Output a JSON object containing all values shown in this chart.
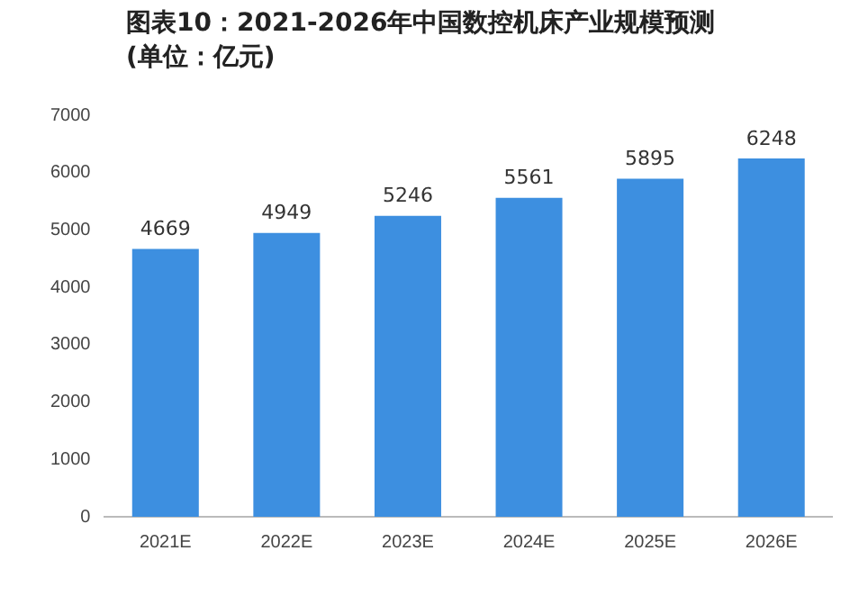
{
  "chart_data": {
    "type": "bar",
    "title": "图表10：2021-2026年中国数控机床产业规模预测(单位：亿元)",
    "categories": [
      "2021E",
      "2022E",
      "2023E",
      "2024E",
      "2025E",
      "2026E"
    ],
    "values": [
      4669,
      4949,
      5246,
      5561,
      5895,
      6248
    ],
    "color": "#3d8fe0",
    "ylim": [
      0,
      7000
    ],
    "yticks": [
      0,
      1000,
      2000,
      3000,
      4000,
      5000,
      6000,
      7000
    ],
    "grid": false,
    "legend": false,
    "data_labels": true
  }
}
